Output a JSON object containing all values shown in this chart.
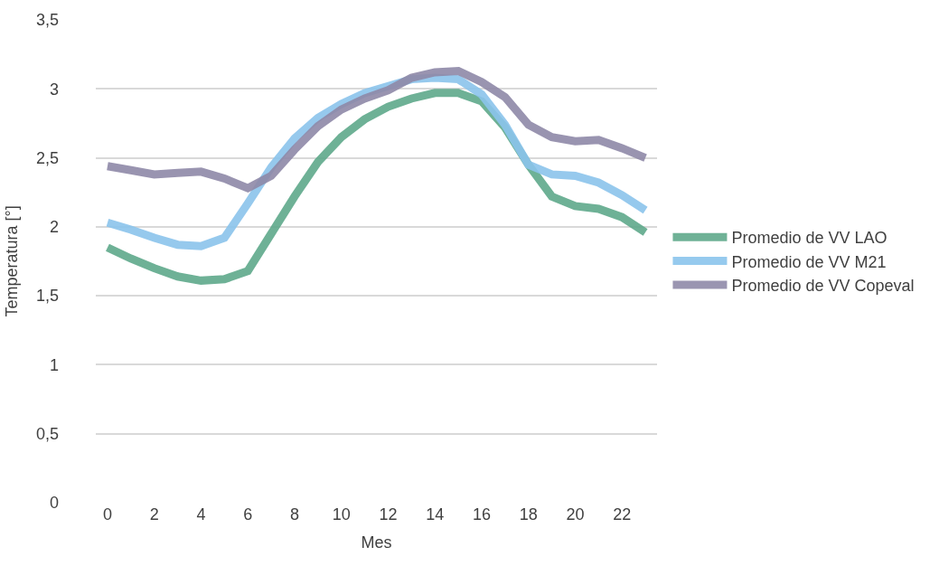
{
  "chart_data": {
    "type": "line",
    "xlabel": "Mes",
    "ylabel": "Temperatura [°]",
    "x": [
      0,
      1,
      2,
      3,
      4,
      5,
      6,
      7,
      8,
      9,
      10,
      11,
      12,
      13,
      14,
      15,
      16,
      17,
      18,
      19,
      20,
      21,
      22,
      23
    ],
    "xlim": [
      -0.5,
      23.5
    ],
    "xticks": [
      0,
      2,
      4,
      6,
      8,
      10,
      12,
      14,
      16,
      18,
      20,
      22
    ],
    "ylim": [
      0,
      3.5
    ],
    "yticks": [
      0,
      {
        "value": 0.5,
        "label": "0,5"
      },
      1,
      {
        "value": 1.5,
        "label": "1,5"
      },
      2,
      {
        "value": 2.5,
        "label": "2,5"
      },
      3,
      {
        "value": 3.5,
        "label": "3,5"
      }
    ],
    "grid": "y",
    "legend": "right",
    "line_style": "solid",
    "marker": "none",
    "series": [
      {
        "name": "Promedio de VV LAO",
        "color": "#5fa98b",
        "values": [
          1.85,
          1.77,
          1.7,
          1.64,
          1.61,
          1.62,
          1.68,
          1.95,
          2.22,
          2.47,
          2.65,
          2.78,
          2.87,
          2.93,
          2.97,
          2.97,
          2.91,
          2.72,
          2.45,
          2.22,
          2.15,
          2.13,
          2.07,
          1.96
        ]
      },
      {
        "name": "Promedio de VV M21",
        "color": "#8bc4ec",
        "values": [
          2.03,
          1.98,
          1.92,
          1.87,
          1.86,
          1.92,
          2.17,
          2.43,
          2.64,
          2.79,
          2.89,
          2.97,
          3.02,
          3.07,
          3.08,
          3.07,
          2.96,
          2.74,
          2.45,
          2.38,
          2.37,
          2.32,
          2.23,
          2.12
        ]
      },
      {
        "name": "Promedio de VV Copeval",
        "color": "#8f89a8",
        "values": [
          2.44,
          2.41,
          2.38,
          2.39,
          2.4,
          2.35,
          2.28,
          2.37,
          2.56,
          2.73,
          2.85,
          2.93,
          2.99,
          3.08,
          3.12,
          3.13,
          3.05,
          2.94,
          2.74,
          2.65,
          2.62,
          2.63,
          2.57,
          2.5
        ]
      }
    ]
  }
}
